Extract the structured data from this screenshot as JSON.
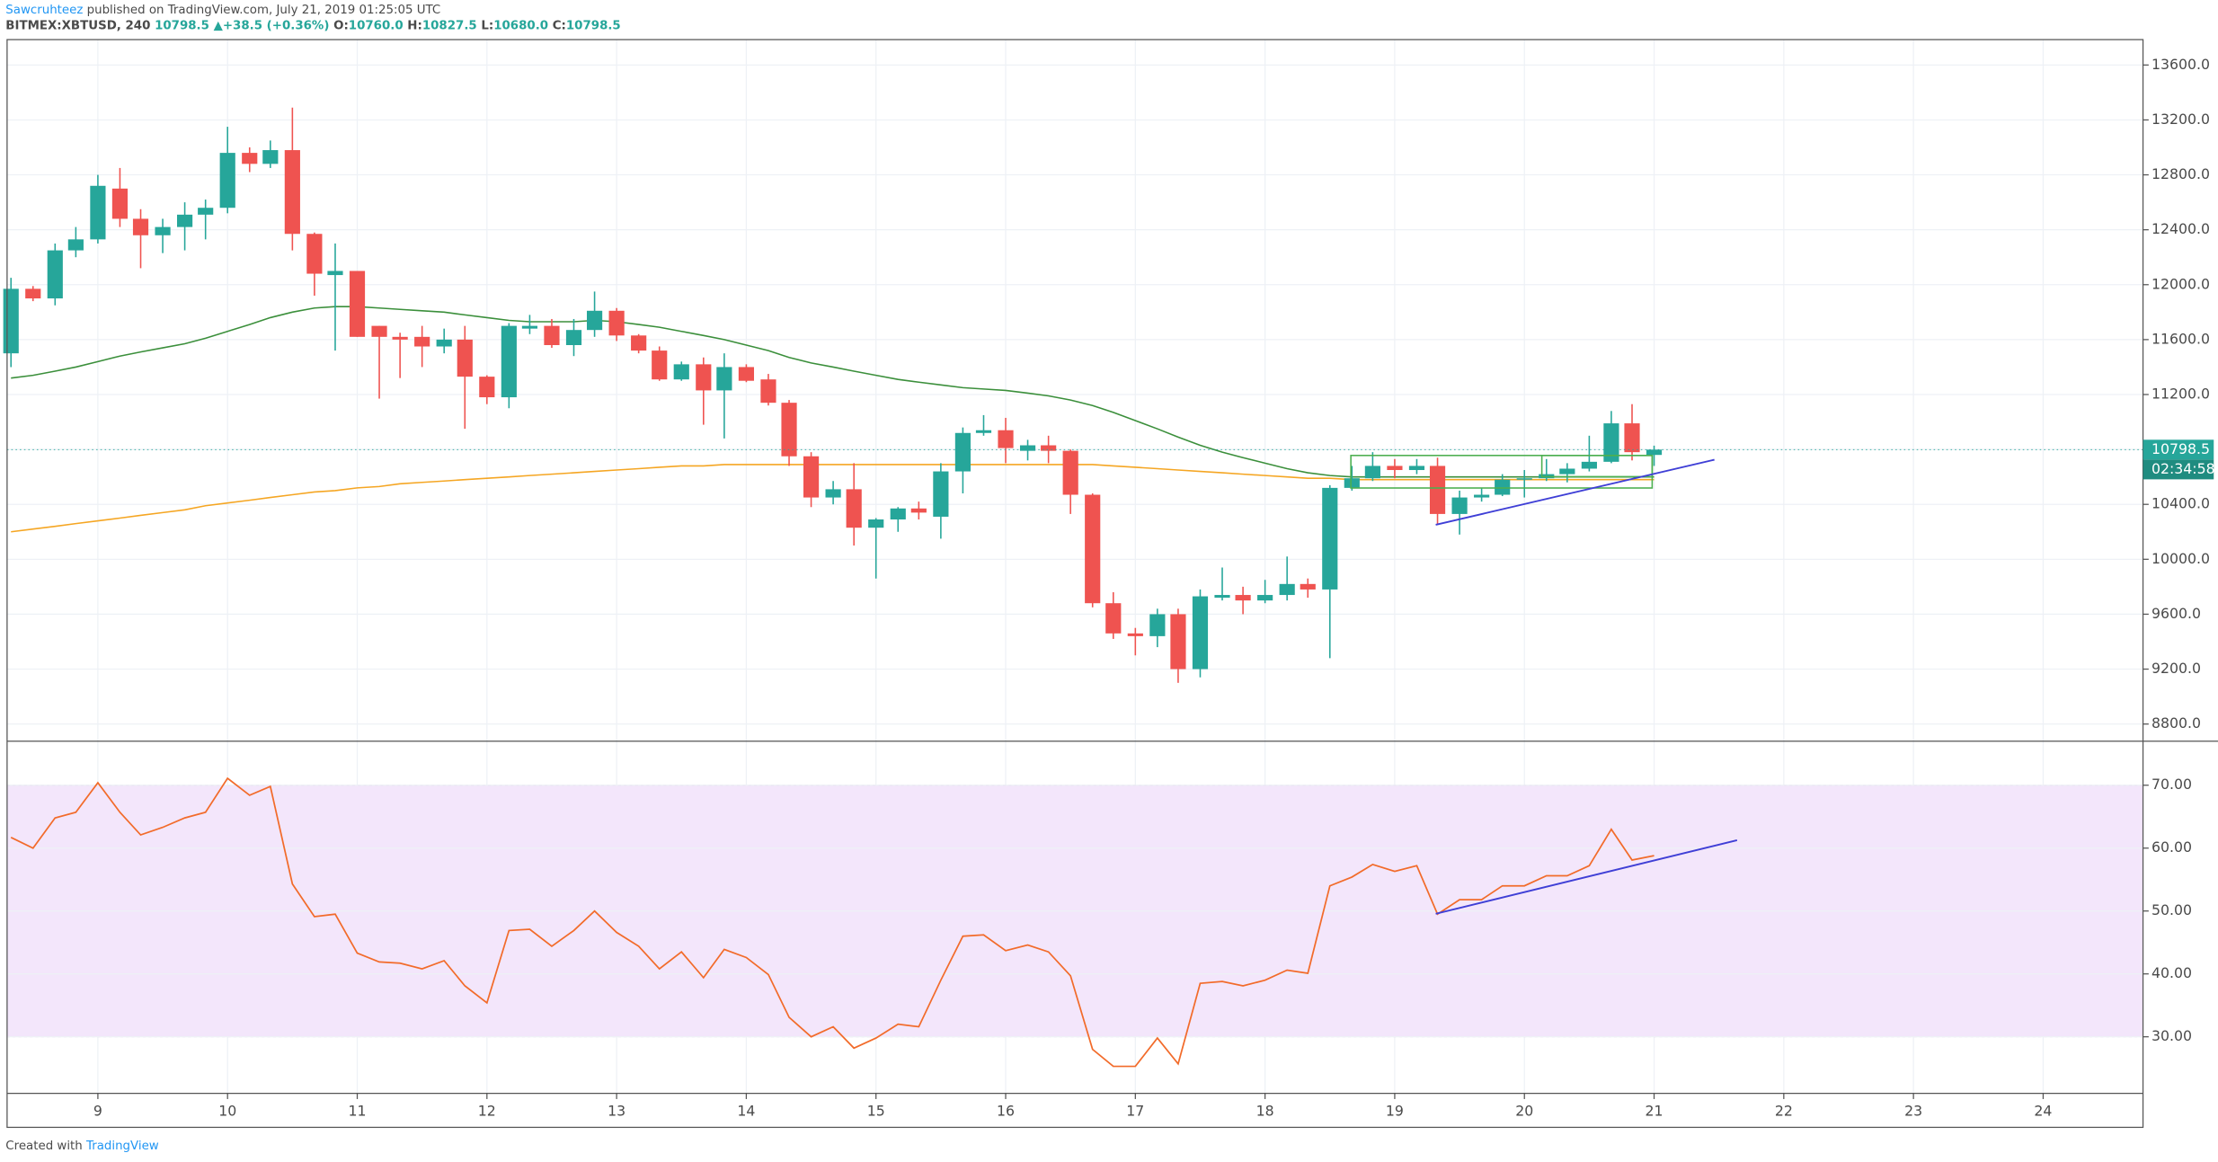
{
  "header": {
    "author": "Sawcruhteez",
    "published": "published on TradingView.com, July 21, 2019 01:25:05 UTC",
    "symbol": "BITMEX:XBTUSD, 240",
    "price": "10798.5",
    "arrow": "▲",
    "change": "+38.5 (+0.36%)",
    "o_label": "O:",
    "o": "10760.0",
    "h_label": "H:",
    "h": "10827.5",
    "l_label": "L:",
    "l": "10680.0",
    "c_label": "C:",
    "c": "10798.5"
  },
  "price_tag": {
    "price": {
      "value": 10798.5,
      "label": "10798.5"
    },
    "countdown": "02:34:58"
  },
  "footer": {
    "created": "Created with",
    "brand": "TradingView"
  },
  "chart_data": [
    {
      "type": "candlestick",
      "up_color": "#26a69a",
      "down_color": "#ef5350",
      "x": [
        8.33,
        8.5,
        8.67,
        8.83,
        9,
        9.17,
        9.33,
        9.5,
        9.67,
        9.83,
        10,
        10.17,
        10.33,
        10.5,
        10.67,
        10.83,
        11,
        11.17,
        11.33,
        11.5,
        11.67,
        11.83,
        12,
        12.17,
        12.33,
        12.5,
        12.67,
        12.83,
        13,
        13.17,
        13.33,
        13.5,
        13.67,
        13.83,
        14,
        14.17,
        14.33,
        14.5,
        14.67,
        14.83,
        15,
        15.17,
        15.33,
        15.5,
        15.67,
        15.83,
        16,
        16.17,
        16.33,
        16.5,
        16.67,
        16.83,
        17,
        17.17,
        17.33,
        17.5,
        17.67,
        17.83,
        18,
        18.17,
        18.33,
        18.5,
        18.67,
        18.83,
        19,
        19.17,
        19.33,
        19.5,
        19.67,
        19.83,
        20,
        20.17,
        20.33,
        20.5,
        20.67,
        20.83,
        21
      ],
      "open": [
        11500,
        11970,
        11900,
        12250,
        12330,
        12700,
        12480,
        12360,
        12420,
        12510,
        12560,
        12960,
        12880,
        12980,
        12370,
        12070,
        12100,
        11700,
        11620,
        11620,
        11550,
        11600,
        11330,
        11180,
        11680,
        11700,
        11560,
        11670,
        11810,
        11630,
        11520,
        11310,
        11420,
        11230,
        11400,
        11310,
        11140,
        10750,
        10450,
        10510,
        10230,
        10290,
        10370,
        10310,
        10640,
        10920,
        10940,
        10790,
        10830,
        10790,
        10470,
        9680,
        9460,
        9440,
        9600,
        9200,
        9720,
        9740,
        9700,
        9740,
        9820,
        9780,
        10520,
        10590,
        10680,
        10650,
        10680,
        10330,
        10450,
        10470,
        10580,
        10590,
        10620,
        10660,
        10710,
        10990,
        10760
      ],
      "high": [
        12050,
        11990,
        12300,
        12420,
        12800,
        12850,
        12550,
        12480,
        12600,
        12620,
        13150,
        13000,
        13050,
        13290,
        12380,
        12300,
        12100,
        11700,
        11650,
        11700,
        11680,
        11700,
        11340,
        11720,
        11780,
        11750,
        11750,
        11950,
        11830,
        11640,
        11550,
        11440,
        11470,
        11500,
        11420,
        11350,
        11160,
        10780,
        10570,
        10700,
        10300,
        10380,
        10420,
        10700,
        10960,
        11050,
        11030,
        10870,
        10900,
        10800,
        10480,
        9760,
        9500,
        9640,
        9640,
        9780,
        9940,
        9800,
        9850,
        10020,
        9860,
        10540,
        10680,
        10780,
        10730,
        10730,
        10740,
        10500,
        10520,
        10620,
        10650,
        10730,
        10700,
        10900,
        11080,
        11130,
        10827.5
      ],
      "low": [
        11400,
        11880,
        11850,
        12200,
        12300,
        12420,
        12120,
        12230,
        12250,
        12330,
        12520,
        12820,
        12850,
        12250,
        11920,
        11520,
        11620,
        11170,
        11320,
        11400,
        11500,
        10950,
        11130,
        11100,
        11640,
        11540,
        11480,
        11620,
        11590,
        11500,
        11300,
        11300,
        10980,
        10880,
        11290,
        11120,
        10680,
        10380,
        10400,
        10100,
        9860,
        10200,
        10290,
        10150,
        10480,
        10900,
        10700,
        10720,
        10700,
        10330,
        9650,
        9420,
        9300,
        9360,
        9100,
        9140,
        9700,
        9600,
        9680,
        9700,
        9720,
        9280,
        10500,
        10570,
        10590,
        10620,
        10250,
        10180,
        10420,
        10460,
        10450,
        10570,
        10560,
        10640,
        10700,
        10720,
        10680
      ],
      "close": [
        11970,
        11900,
        12250,
        12330,
        12720,
        12480,
        12360,
        12420,
        12510,
        12560,
        12960,
        12880,
        12980,
        12370,
        12080,
        12100,
        11620,
        11620,
        11600,
        11550,
        11600,
        11330,
        11180,
        11700,
        11700,
        11560,
        11670,
        11810,
        11630,
        11520,
        11310,
        11420,
        11230,
        11400,
        11300,
        11140,
        10750,
        10450,
        10510,
        10230,
        10290,
        10370,
        10340,
        10640,
        10920,
        10940,
        10810,
        10830,
        10790,
        10470,
        9680,
        9460,
        9440,
        9600,
        9200,
        9730,
        9740,
        9700,
        9740,
        9820,
        9780,
        10520,
        10590,
        10680,
        10650,
        10680,
        10330,
        10450,
        10470,
        10580,
        10590,
        10620,
        10660,
        10710,
        10990,
        10780,
        10798.5
      ],
      "overlays": [
        {
          "color": "#3b8f3b",
          "values": [
            11320,
            11340,
            11370,
            11400,
            11440,
            11480,
            11510,
            11540,
            11570,
            11610,
            11660,
            11710,
            11760,
            11800,
            11830,
            11840,
            11840,
            11830,
            11820,
            11810,
            11800,
            11780,
            11760,
            11740,
            11730,
            11730,
            11730,
            11740,
            11730,
            11710,
            11690,
            11660,
            11630,
            11600,
            11560,
            11520,
            11470,
            11430,
            11400,
            11370,
            11340,
            11310,
            11290,
            11270,
            11250,
            11240,
            11230,
            11210,
            11190,
            11160,
            11120,
            11070,
            11010,
            10950,
            10890,
            10830,
            10780,
            10740,
            10700,
            10660,
            10630,
            10610,
            10600,
            10600,
            10600,
            10600,
            10600,
            10600,
            10600,
            10600,
            10600,
            10600,
            10600,
            10600,
            10600,
            10600,
            10600
          ]
        },
        {
          "color": "#f5a623",
          "values": [
            10200,
            10220,
            10240,
            10260,
            10280,
            10300,
            10320,
            10340,
            10360,
            10390,
            10410,
            10430,
            10450,
            10470,
            10490,
            10500,
            10520,
            10530,
            10550,
            10560,
            10570,
            10580,
            10590,
            10600,
            10610,
            10620,
            10630,
            10640,
            10650,
            10660,
            10670,
            10680,
            10680,
            10690,
            10690,
            10690,
            10690,
            10690,
            10690,
            10690,
            10690,
            10690,
            10690,
            10690,
            10690,
            10690,
            10690,
            10690,
            10690,
            10690,
            10690,
            10680,
            10670,
            10660,
            10650,
            10640,
            10630,
            10620,
            10610,
            10600,
            10590,
            10590,
            10580,
            10580,
            10580,
            10580,
            10580,
            10580,
            10580,
            10580,
            10580,
            10580,
            10580,
            10580,
            10580,
            10580,
            10580
          ]
        }
      ],
      "xlim": [
        8.3,
        24.77
      ],
      "xticks": [
        9,
        10,
        11,
        12,
        13,
        14,
        15,
        16,
        17,
        18,
        19,
        20,
        21,
        22,
        23,
        24
      ],
      "ylim": [
        8675,
        13785
      ],
      "yticks": [
        {
          "value": 8800,
          "label": "8800.0"
        },
        {
          "value": 9200,
          "label": "9200.0"
        },
        {
          "value": 9600,
          "label": "9600.0"
        },
        {
          "value": 10000,
          "label": "10000.0"
        },
        {
          "value": 10400,
          "label": "10400.0"
        },
        {
          "value": 10800,
          "label": "10800.0"
        },
        {
          "value": 11200,
          "label": "11200.0"
        },
        {
          "value": 11600,
          "label": "11600.0"
        },
        {
          "value": 12000,
          "label": "12000.0"
        },
        {
          "value": 12400,
          "label": "12400.0"
        },
        {
          "value": 12800,
          "label": "12800.0"
        },
        {
          "value": 13200,
          "label": "13200.0"
        },
        {
          "value": 13600,
          "label": "13600.0"
        }
      ],
      "grid": true
    },
    {
      "type": "line",
      "color": "#f26b2a",
      "band": [
        30,
        70
      ],
      "band_color": "#f3e6fb",
      "x": [
        8.33,
        8.5,
        8.67,
        8.83,
        9,
        9.17,
        9.33,
        9.5,
        9.67,
        9.83,
        10,
        10.17,
        10.33,
        10.5,
        10.67,
        10.83,
        11,
        11.17,
        11.33,
        11.5,
        11.67,
        11.83,
        12,
        12.17,
        12.33,
        12.5,
        12.67,
        12.83,
        13,
        13.17,
        13.33,
        13.5,
        13.67,
        13.83,
        14,
        14.17,
        14.33,
        14.5,
        14.67,
        14.83,
        15,
        15.17,
        15.33,
        15.5,
        15.67,
        15.83,
        16,
        16.17,
        16.33,
        16.5,
        16.67,
        16.83,
        17,
        17.17,
        17.33,
        17.5,
        17.67,
        17.83,
        18,
        18.17,
        18.33,
        18.5,
        18.67,
        18.83,
        19,
        19.17,
        19.33,
        19.5,
        19.67,
        19.83,
        20,
        20.17,
        20.33,
        20.5,
        20.67,
        20.83,
        21
      ],
      "values": [
        61.7,
        60,
        64.8,
        65.7,
        70.4,
        65.7,
        62.1,
        63.3,
        64.8,
        65.7,
        71.1,
        68.4,
        69.8,
        54.3,
        49.1,
        49.5,
        43.3,
        41.9,
        41.7,
        40.8,
        42.1,
        38.1,
        35.4,
        46.9,
        47.1,
        44.4,
        46.9,
        50,
        46.6,
        44.4,
        40.8,
        43.5,
        39.4,
        43.9,
        42.6,
        39.9,
        33.1,
        30,
        31.6,
        28.2,
        29.8,
        32,
        31.6,
        39,
        46,
        46.2,
        43.7,
        44.6,
        43.5,
        39.7,
        28,
        25.3,
        25.3,
        29.8,
        25.7,
        38.5,
        38.8,
        38.1,
        39,
        40.6,
        40.1,
        54,
        55.4,
        57.4,
        56.3,
        57.2,
        49.5,
        51.8,
        51.8,
        54,
        54,
        55.6,
        55.6,
        57.2,
        63,
        58.1,
        58.8
      ],
      "xlim": [
        8.3,
        24.77
      ],
      "ylim": [
        21,
        77
      ],
      "yticks": [
        {
          "value": 30,
          "label": "30.00"
        },
        {
          "value": 40,
          "label": "40.00"
        },
        {
          "value": 50,
          "label": "50.00"
        },
        {
          "value": 60,
          "label": "60.00"
        },
        {
          "value": 70,
          "label": "70.00"
        }
      ]
    }
  ]
}
